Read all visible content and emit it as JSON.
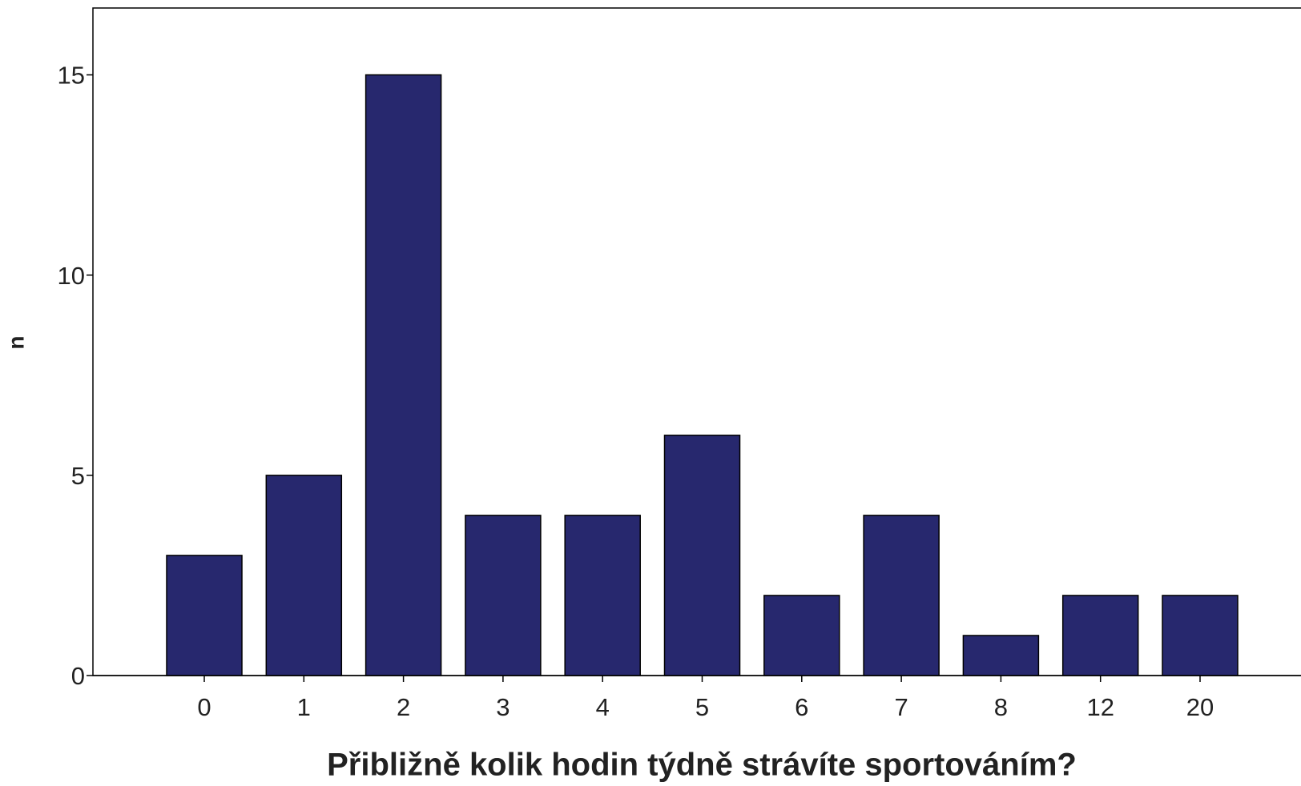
{
  "chart_data": {
    "type": "bar",
    "x_label": "Přibližně kolik hodin týdně strávíte sportováním?",
    "y_label": "n",
    "categories": [
      "0",
      "1",
      "2",
      "3",
      "4",
      "5",
      "6",
      "7",
      "8",
      "12",
      "20"
    ],
    "values": [
      3,
      5,
      15,
      4,
      4,
      6,
      2,
      4,
      1,
      2,
      2
    ],
    "color": "#27286e",
    "ylim": [
      0,
      16.67
    ],
    "yticks": [
      0,
      5,
      10,
      15
    ],
    "grid": false
  }
}
